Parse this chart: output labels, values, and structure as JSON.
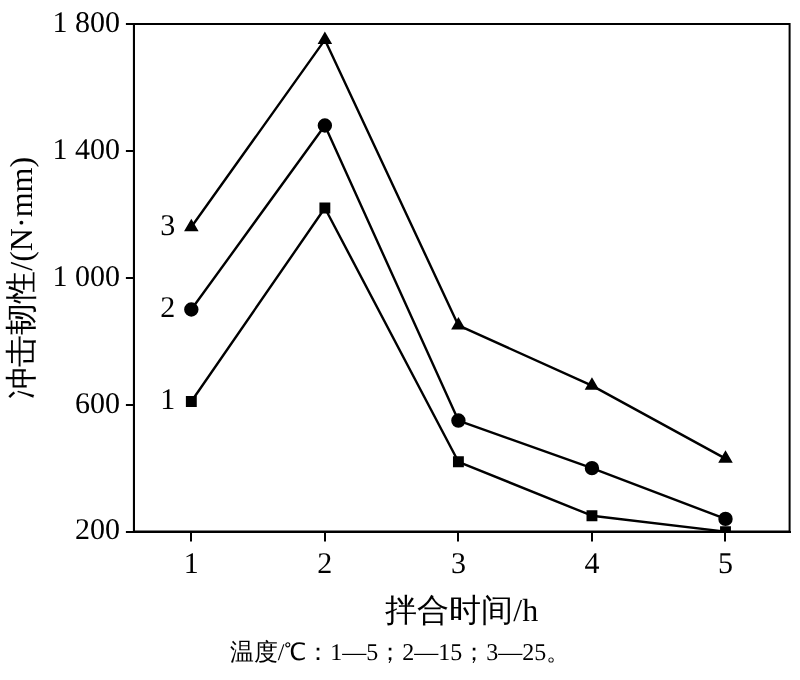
{
  "chart_data": {
    "type": "line",
    "xlabel": "拌合时间/h",
    "ylabel": "冲击韧性/(N·mm)",
    "x": [
      1,
      2,
      3,
      4,
      5
    ],
    "series": [
      {
        "name": "1",
        "color": "#000000",
        "marker": "square",
        "values": [
          610,
          1220,
          420,
          250,
          200
        ]
      },
      {
        "name": "2",
        "color": "#000000",
        "marker": "circle",
        "values": [
          900,
          1480,
          550,
          400,
          240
        ]
      },
      {
        "name": "3",
        "color": "#000000",
        "marker": "triangle",
        "values": [
          1160,
          1750,
          850,
          660,
          430
        ]
      }
    ],
    "xlim": [
      0.57,
      5.48
    ],
    "xticks": [
      1,
      2,
      3,
      4,
      5
    ],
    "ylim": [
      200,
      1800
    ],
    "yticks": [
      200,
      600,
      {
        "value": 1000,
        "label": "1 000"
      },
      {
        "value": 1400,
        "label": "1 400"
      },
      {
        "value": 1800,
        "label": "1 800"
      }
    ],
    "grid": false,
    "legend": false,
    "line_style": "solid",
    "annotations": [
      "温度/℃：1—5；2—15；3—25。"
    ]
  }
}
